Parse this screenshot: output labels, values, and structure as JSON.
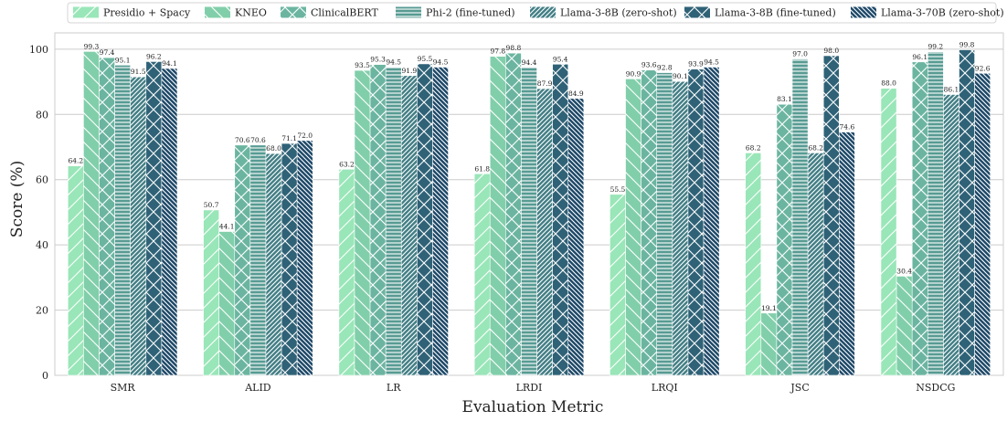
{
  "chart_data": {
    "type": "bar",
    "title": "",
    "xlabel": "Evaluation Metric",
    "ylabel": "Score (%)",
    "ylim": [
      0,
      105
    ],
    "yticks": [
      0,
      20,
      40,
      60,
      80,
      100
    ],
    "grid": "horizontal",
    "legend_position": "top",
    "categories": [
      "SMR",
      "ALID",
      "LR",
      "LRDI",
      "LRQI",
      "JSC",
      "NSDCG"
    ],
    "series": [
      {
        "name": "Presidio + Spacy",
        "color": "#99e6b8",
        "pattern": "diag-fwd",
        "values": [
          64.2,
          50.7,
          63.2,
          61.8,
          55.5,
          68.2,
          88.0
        ]
      },
      {
        "name": "KNEO",
        "color": "#81cfaa",
        "pattern": "diag-back",
        "values": [
          99.3,
          44.1,
          93.5,
          97.8,
          90.9,
          19.1,
          30.4
        ]
      },
      {
        "name": "ClinicalBERT",
        "color": "#6bb5a0",
        "pattern": "cross",
        "values": [
          97.4,
          70.6,
          95.3,
          98.8,
          93.6,
          83.1,
          96.1
        ]
      },
      {
        "name": "Phi-2 (fine-tuned)",
        "color": "#579b93",
        "pattern": "horiz",
        "values": [
          95.1,
          70.6,
          94.5,
          94.4,
          92.8,
          97.0,
          99.2
        ]
      },
      {
        "name": "Llama-3-8B (zero-shot)",
        "color": "#427e85",
        "pattern": "diag-fwd-dense",
        "values": [
          91.5,
          68.0,
          91.9,
          87.9,
          90.1,
          68.2,
          86.1
        ]
      },
      {
        "name": "Llama-3-8B (fine-tuned)",
        "color": "#2f6277",
        "pattern": "cross",
        "values": [
          96.2,
          71.1,
          95.5,
          95.4,
          93.9,
          98.0,
          99.8
        ]
      },
      {
        "name": "Llama-3-70B (zero-shot)",
        "color": "#1c4767",
        "pattern": "diag-back-dense",
        "values": [
          94.1,
          72.0,
          94.5,
          84.9,
          94.5,
          74.6,
          92.6
        ]
      }
    ]
  }
}
